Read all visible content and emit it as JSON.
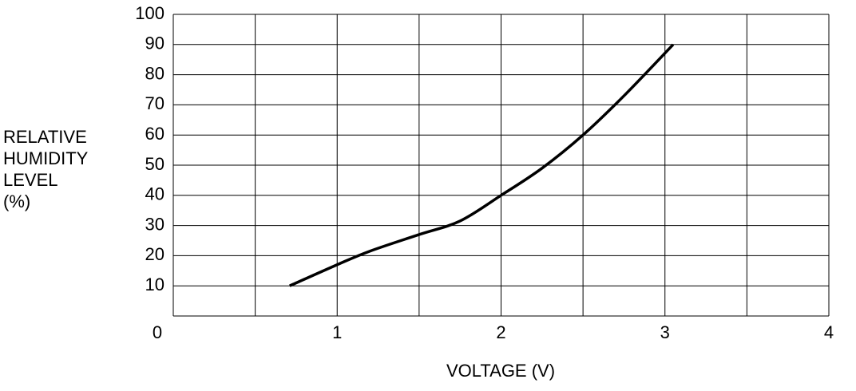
{
  "chart_data": {
    "type": "line",
    "ylabel": [
      "RELATIVE",
      "HUMIDITY",
      "LEVEL",
      "(%)"
    ],
    "xlabel": "VOLTAGE (V)",
    "series": [
      {
        "color": "#000000",
        "x": [
          0.71,
          1,
          1.2,
          1.5,
          1.75,
          2,
          2.25,
          2.5,
          2.75,
          3.05
        ],
        "values": [
          10,
          17,
          21.5,
          27,
          31.5,
          40,
          49,
          60,
          73,
          90
        ]
      }
    ],
    "xlim": [
      0,
      4
    ],
    "xticks": [
      0,
      1,
      2,
      3,
      4
    ],
    "xminor": [
      0.5,
      1.5,
      2.5,
      3.5
    ],
    "ylim": [
      0,
      100
    ],
    "yticks": [
      10,
      20,
      30,
      40,
      50,
      60,
      70,
      80,
      90,
      100
    ],
    "grid": true
  }
}
